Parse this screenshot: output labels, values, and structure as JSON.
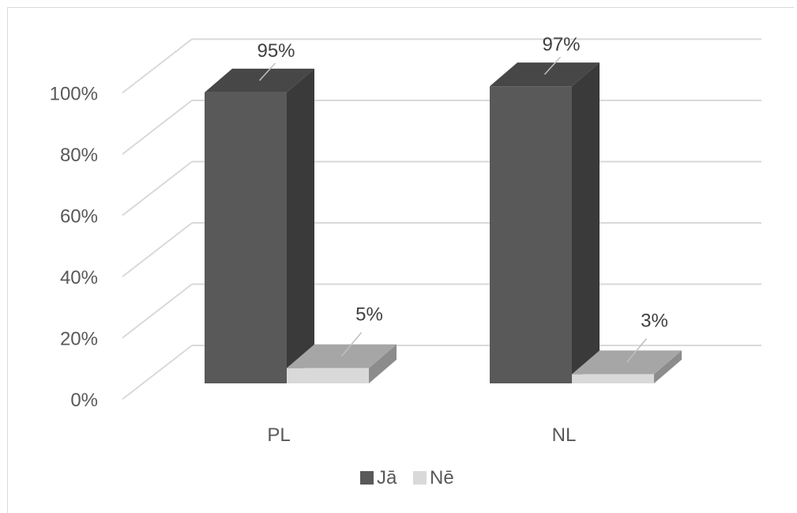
{
  "chart_data": {
    "type": "bar",
    "categories": [
      "PL",
      "NL"
    ],
    "series": [
      {
        "name": "Jā",
        "values": [
          95,
          97
        ],
        "labels": [
          "95%",
          "97%"
        ],
        "color": "#595959",
        "color_side": "#3a3a3a",
        "color_top": "#474747"
      },
      {
        "name": "Nē",
        "values": [
          5,
          3
        ],
        "labels": [
          "5%",
          "3%"
        ],
        "color": "#d9d9d9",
        "color_side": "#8c8c8c",
        "color_top": "#a6a6a6"
      }
    ],
    "y_ticks": [
      "0%",
      "20%",
      "40%",
      "60%",
      "80%",
      "100%"
    ],
    "ylim": [
      0,
      100
    ],
    "grid": true,
    "legend": "bottom",
    "three_d": true
  }
}
